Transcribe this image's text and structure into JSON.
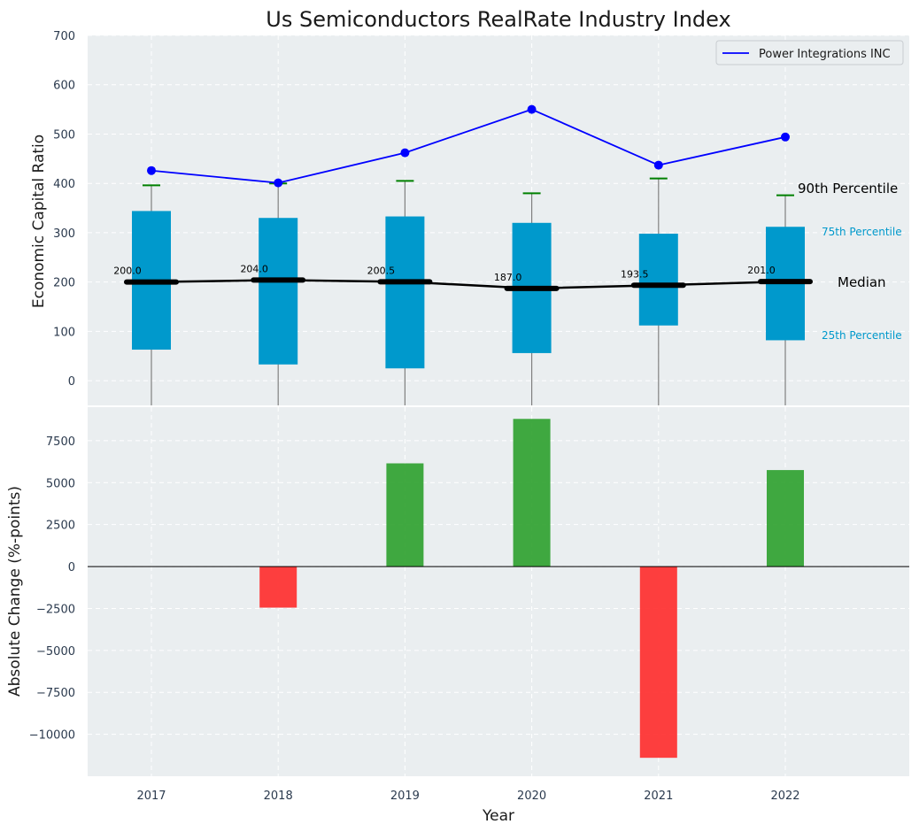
{
  "chart_data": [
    {
      "type": "box",
      "title": "Us Semiconductors RealRate Industry Index",
      "xlabel": "",
      "ylabel": "Economic Capital Ratio",
      "ylim": [
        -50,
        700
      ],
      "yticks": [
        0,
        100,
        200,
        300,
        400,
        500,
        600,
        700
      ],
      "grid": true,
      "categories": [
        "2017",
        "2018",
        "2019",
        "2020",
        "2021",
        "2022"
      ],
      "boxes": [
        {
          "year": "2017",
          "p25": 63,
          "median": 200.0,
          "p75": 344,
          "p90": 396
        },
        {
          "year": "2018",
          "p25": 33,
          "median": 204.0,
          "p75": 330,
          "p90": 400
        },
        {
          "year": "2019",
          "p25": 25,
          "median": 200.5,
          "p75": 333,
          "p90": 405
        },
        {
          "year": "2020",
          "p25": 56,
          "median": 187.0,
          "p75": 320,
          "p90": 380
        },
        {
          "year": "2021",
          "p25": 112,
          "median": 193.5,
          "p75": 298,
          "p90": 410
        },
        {
          "year": "2022",
          "p25": 82,
          "median": 201.0,
          "p75": 312,
          "p90": 376
        }
      ],
      "median_labels": [
        "200.0",
        "204.0",
        "200.5",
        "187.0",
        "193.5",
        "201.0"
      ],
      "series": [
        {
          "name": "Power Integrations INC",
          "values": [
            426,
            401,
            462,
            550,
            437,
            494
          ],
          "color": "#0000ff"
        }
      ],
      "legend": "top-right",
      "annotations": {
        "p90": "90th Percentile",
        "p75": "75th Percentile",
        "median": "Median",
        "p25": "25th Percentile"
      },
      "colors": {
        "box": "#0099cc",
        "whisker_cap": "#008000",
        "median": "#000000",
        "background": "#eaeef0"
      }
    },
    {
      "type": "bar",
      "xlabel": "Year",
      "ylabel": "Absolute Change (%-points)",
      "ylim": [
        -12500,
        9500
      ],
      "yticks": [
        -10000,
        -7500,
        -5000,
        -2500,
        0,
        2500,
        5000,
        7500
      ],
      "ytick_labels": [
        "−10000",
        "−7500",
        "−5000",
        "−2500",
        "0",
        "2500",
        "5000",
        "7500"
      ],
      "grid": true,
      "categories": [
        "2017",
        "2018",
        "2019",
        "2020",
        "2021",
        "2022"
      ],
      "values": [
        0,
        -2450,
        6150,
        8800,
        -11400,
        5750
      ],
      "colors": {
        "positive": "#2ca02c",
        "negative": "#ff2a2a"
      }
    }
  ]
}
